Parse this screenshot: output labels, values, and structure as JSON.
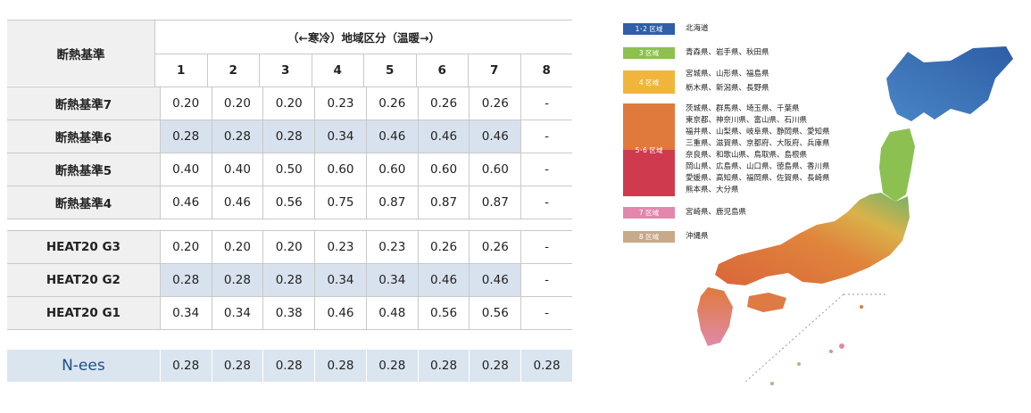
{
  "table": {
    "header_label": "断熱基準",
    "header_group": "（←寒冷）地域区分（温暖→）",
    "regions": [
      "1",
      "2",
      "3",
      "4",
      "5",
      "6",
      "7",
      "8"
    ],
    "rows": [
      {
        "label": "断熱基準7",
        "values": [
          "0.20",
          "0.20",
          "0.20",
          "0.23",
          "0.26",
          "0.26",
          "0.26",
          "-"
        ],
        "highlight": false
      },
      {
        "label": "断熱基準6",
        "values": [
          "0.28",
          "0.28",
          "0.28",
          "0.34",
          "0.46",
          "0.46",
          "0.46",
          "-"
        ],
        "highlight": true
      },
      {
        "label": "断熱基準5",
        "values": [
          "0.40",
          "0.40",
          "0.50",
          "0.60",
          "0.60",
          "0.60",
          "0.60",
          "-"
        ],
        "highlight": false
      },
      {
        "label": "断熱基準4",
        "values": [
          "0.46",
          "0.46",
          "0.56",
          "0.75",
          "0.87",
          "0.87",
          "0.87",
          "-"
        ],
        "highlight": false
      }
    ],
    "heat_rows": [
      {
        "label": "HEAT20 G3",
        "values": [
          "0.20",
          "0.20",
          "0.20",
          "0.23",
          "0.23",
          "0.26",
          "0.26",
          "-"
        ],
        "highlight": false
      },
      {
        "label": "HEAT20 G2",
        "values": [
          "0.28",
          "0.28",
          "0.28",
          "0.34",
          "0.34",
          "0.46",
          "0.46",
          "-"
        ],
        "highlight": true
      },
      {
        "label": "HEAT20 G1",
        "values": [
          "0.34",
          "0.34",
          "0.38",
          "0.46",
          "0.48",
          "0.56",
          "0.56",
          "-"
        ],
        "highlight": false
      }
    ],
    "nees": {
      "label": "N-ees",
      "values": [
        "0.28",
        "0.28",
        "0.28",
        "0.28",
        "0.28",
        "0.28",
        "0.28",
        "0.28"
      ]
    }
  },
  "legend": {
    "items": [
      {
        "zone": "1･2 区域",
        "color": "#2f5fa8",
        "lines": [
          "北海道"
        ]
      },
      {
        "zone": "3 区域",
        "color": "#8cc152",
        "lines": [
          "青森県、岩手県、秋田県"
        ]
      },
      {
        "zone": "4 区域",
        "color": "#f2b53c",
        "lines": [
          "宮城県、山形県、福島県",
          "栃木県、新潟県、長野県"
        ]
      },
      {
        "zone": "5･6 区域",
        "color": "#e07a3c",
        "color2": "#d03a4e",
        "lines": [
          "茨城県、群馬県、埼玉県、千葉県",
          "東京都、神奈川県、富山県、石川県",
          "福井県、山梨県、岐阜県、静岡県、愛知県",
          "三重県、滋賀県、京都府、大阪府、兵庫県",
          "奈良県、和歌山県、鳥取県、島根県",
          "岡山県、広島県、山口県、徳島県、香川県",
          "愛媛県、高知県、福岡県、佐賀県、長崎県",
          "熊本県、大分県"
        ]
      },
      {
        "zone": "7 区域",
        "color": "#e387ad",
        "lines": [
          "宮崎県、鹿児島県"
        ]
      },
      {
        "zone": "8 区域",
        "color": "#c8a98a",
        "lines": [
          "沖縄県"
        ]
      }
    ]
  }
}
